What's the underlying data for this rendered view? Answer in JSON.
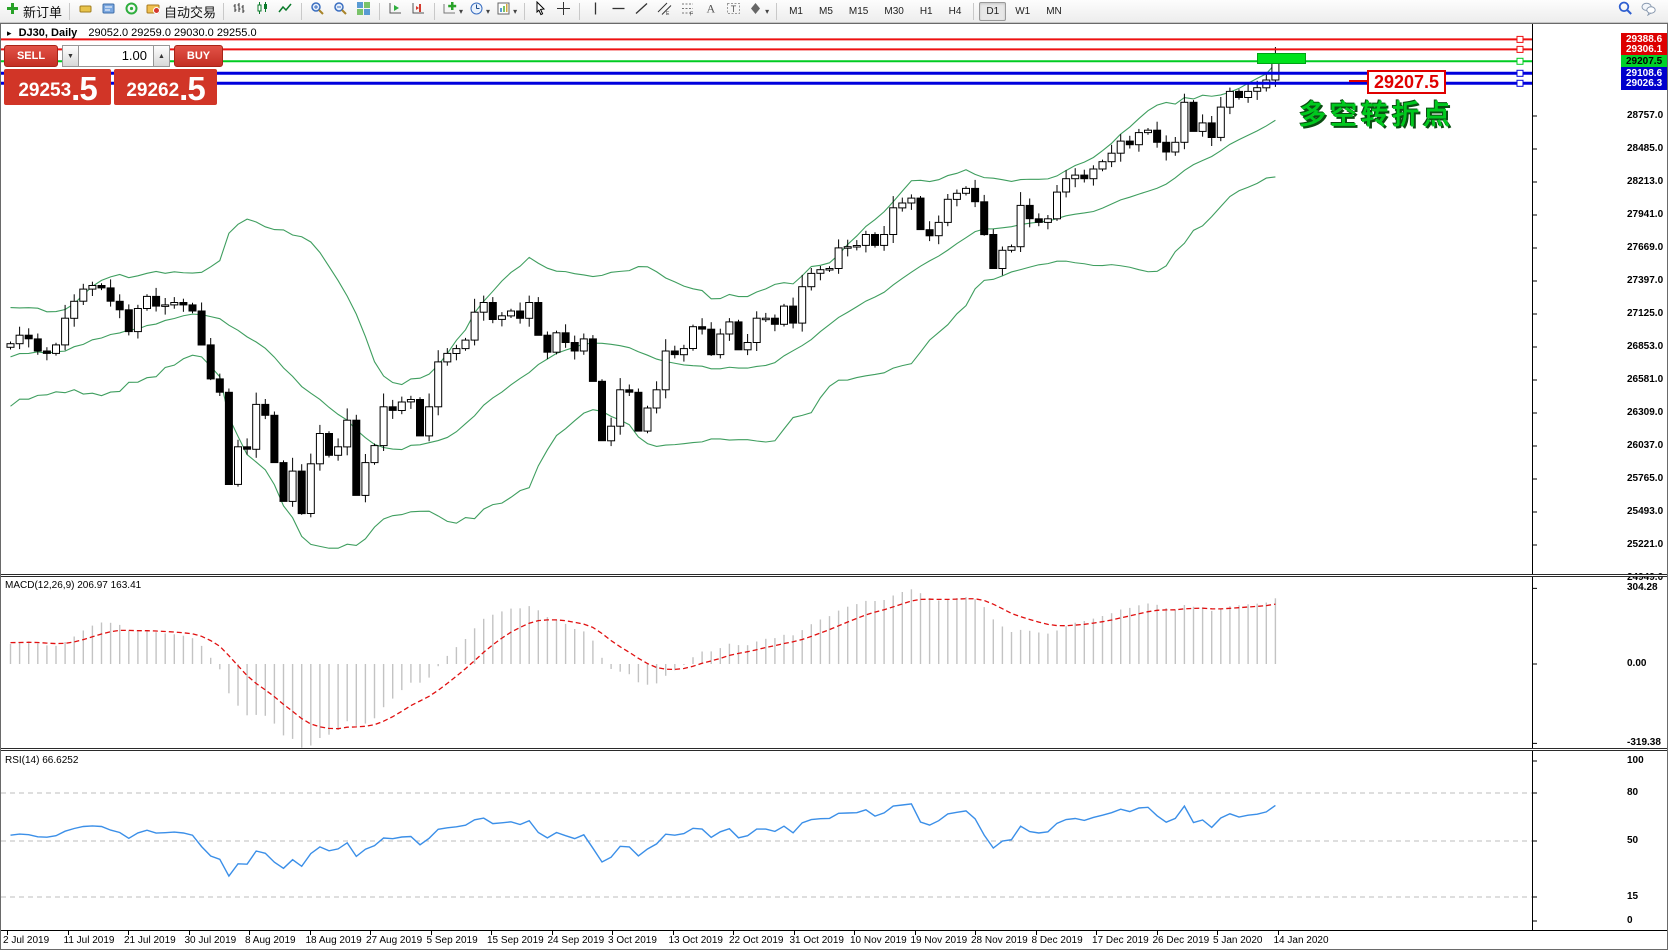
{
  "toolbar": {
    "groups": [
      [
        {
          "name": "new-order-button",
          "icon": "new-order",
          "label": "新订单"
        }
      ],
      [
        {
          "name": "market-watch-button",
          "icon": "market-watch"
        },
        {
          "name": "data-window-button",
          "icon": "data-window"
        },
        {
          "name": "navigator-button",
          "icon": "navigator"
        },
        {
          "name": "auto-trading-button",
          "icon": "auto-trading",
          "label": "自动交易"
        }
      ],
      [
        {
          "name": "bar-chart-button",
          "icon": "bar-chart"
        },
        {
          "name": "candlestick-chart-button",
          "icon": "candlestick-chart"
        },
        {
          "name": "line-chart-button",
          "icon": "line-chart"
        }
      ],
      [
        {
          "name": "zoom-in-button",
          "icon": "zoom-in"
        },
        {
          "name": "zoom-out-button",
          "icon": "zoom-out"
        },
        {
          "name": "tile-windows-button",
          "icon": "tile-windows"
        }
      ],
      [
        {
          "name": "auto-scroll-button",
          "icon": "auto-scroll"
        },
        {
          "name": "chart-shift-button",
          "icon": "chart-shift"
        }
      ],
      [
        {
          "name": "indicators-button",
          "icon": "indicators",
          "dropdown": true
        },
        {
          "name": "periods-button",
          "icon": "periods",
          "dropdown": true
        },
        {
          "name": "templates-button",
          "icon": "templates",
          "dropdown": true
        }
      ],
      [
        {
          "name": "cursor-button",
          "icon": "cursor"
        },
        {
          "name": "crosshair-button",
          "icon": "crosshair"
        }
      ],
      [
        {
          "name": "vertical-line-button",
          "icon": "vertical-line"
        },
        {
          "name": "horizontal-line-button",
          "icon": "horizontal-line"
        },
        {
          "name": "trendline-button",
          "icon": "trendline"
        },
        {
          "name": "equidistant-channel-button",
          "icon": "channel"
        },
        {
          "name": "fibonacci-button",
          "icon": "fibonacci"
        },
        {
          "name": "text-button",
          "icon": "text"
        },
        {
          "name": "text-label-button",
          "icon": "text-label"
        },
        {
          "name": "arrows-button",
          "icon": "arrows",
          "dropdown": true
        }
      ]
    ],
    "timeframes": [
      "M1",
      "M5",
      "M15",
      "M30",
      "H1",
      "H4",
      "D1",
      "W1",
      "MN"
    ],
    "active_timeframe": "D1",
    "right_icons": [
      {
        "name": "search-button",
        "icon": "search"
      },
      {
        "name": "chat-button",
        "icon": "chat"
      }
    ]
  },
  "chart_window": {
    "title_symbol": "DJ30, Daily",
    "title_ohlc": "29052.0 29259.0 29030.0 29255.0"
  },
  "trade_panel": {
    "sell_label": "SELL",
    "buy_label": "BUY",
    "volume": "1.00",
    "sell_price_int": "29253",
    "sell_price_frac": ".5",
    "buy_price_int": "29262",
    "buy_price_frac": ".5"
  },
  "annotations": {
    "price_tag": "29207.5",
    "turning_point": "多空转折点"
  },
  "macd_panel": {
    "label": "MACD(12,26,9) 206.97 163.41",
    "axis_labels": [
      {
        "text": "304.28",
        "value": 304.28
      },
      {
        "text": "0.00",
        "value": 0
      },
      {
        "text": "-319.38",
        "value": -319.38
      }
    ]
  },
  "rsi_panel": {
    "label": "RSI(14) 66.6252",
    "axis_labels": [
      {
        "text": "100",
        "value": 100
      },
      {
        "text": "80",
        "value": 80
      },
      {
        "text": "50",
        "value": 50
      },
      {
        "text": "15",
        "value": 15
      },
      {
        "text": "0",
        "value": 0
      }
    ],
    "levels": [
      80,
      50,
      15
    ]
  },
  "price_axis": {
    "tick_start": 28757,
    "tick_step": 272,
    "tick_count": 15
  },
  "time_axis": {
    "dates": [
      "2 Jul 2019",
      "11 Jul 2019",
      "21 Jul 2019",
      "30 Jul 2019",
      "8 Aug 2019",
      "18 Aug 2019",
      "27 Aug 2019",
      "5 Sep 2019",
      "15 Sep 2019",
      "24 Sep 2019",
      "3 Oct 2019",
      "13 Oct 2019",
      "22 Oct 2019",
      "31 Oct 2019",
      "10 Nov 2019",
      "19 Nov 2019",
      "28 Nov 2019",
      "8 Dec 2019",
      "17 Dec 2019",
      "26 Dec 2019",
      "5 Jan 2020",
      "14 Jan 2020"
    ]
  },
  "chart_data": {
    "type": "candlestick",
    "symbol": "DJ30",
    "timeframe": "Daily",
    "last_bar": {
      "open": 29052.0,
      "high": 29259.0,
      "low": 29030.0,
      "close": 29255.0
    },
    "y_range": [
      24949,
      29450
    ],
    "closes": [
      26880,
      26950,
      26920,
      26820,
      26800,
      26870,
      27090,
      27230,
      27330,
      27360,
      27340,
      27230,
      27160,
      26980,
      27170,
      27270,
      27190,
      27200,
      27220,
      27200,
      27150,
      26870,
      26590,
      26480,
      25720,
      26030,
      26010,
      26380,
      26290,
      25900,
      25580,
      25830,
      25480,
      25890,
      26140,
      25960,
      26030,
      26250,
      25630,
      25900,
      26040,
      26360,
      26330,
      26400,
      26420,
      26120,
      26360,
      26730,
      26800,
      26840,
      26910,
      27140,
      27220,
      27080,
      27110,
      27150,
      27090,
      27220,
      26950,
      26810,
      26970,
      26890,
      26820,
      26920,
      26570,
      26080,
      26200,
      26500,
      26480,
      26160,
      26350,
      26500,
      26820,
      26790,
      26840,
      27020,
      27000,
      26790,
      26960,
      27060,
      26830,
      26890,
      27090,
      27090,
      27040,
      27190,
      27050,
      27350,
      27460,
      27490,
      27500,
      27670,
      27680,
      27690,
      27780,
      27690,
      27780,
      28000,
      28040,
      28080,
      27820,
      27770,
      27880,
      28070,
      28120,
      28160,
      28050,
      27780,
      27500,
      27650,
      27680,
      28020,
      27910,
      27880,
      27910,
      28130,
      28240,
      28270,
      28240,
      28320,
      28380,
      28450,
      28550,
      28520,
      28620,
      28640,
      28540,
      28460,
      28540,
      28870,
      28630,
      28700,
      28580,
      28830,
      28960,
      28910,
      28960,
      28990,
      29054,
      29255
    ],
    "bollinger": {
      "period": 20,
      "deviation": 2
    },
    "macd": {
      "fast": 12,
      "slow": 26,
      "signal": 9,
      "value": 206.97,
      "signal_value": 163.41
    },
    "rsi": {
      "period": 14,
      "value": 66.6252
    },
    "horizontal_lines": [
      {
        "price": 29388.6,
        "color": "#ee1111",
        "label_bg": "#dd0000",
        "label_color": "#ffffff"
      },
      {
        "price": 29306.1,
        "color": "#ee1111",
        "label_bg": "#dd0000",
        "label_color": "#ffffff"
      },
      {
        "price": 29207.5,
        "color": "#00cc22",
        "label_bg": "#00d22a",
        "label_color": "#000000"
      },
      {
        "price": 29108.6,
        "color": "#0000dd",
        "label_bg": "#0000cc",
        "label_color": "#ffffff"
      },
      {
        "price": 29026.3,
        "color": "#0000dd",
        "label_bg": "#0000cc",
        "label_color": "#ffffff"
      }
    ],
    "current_price_box": {
      "price": 29207.5
    }
  }
}
